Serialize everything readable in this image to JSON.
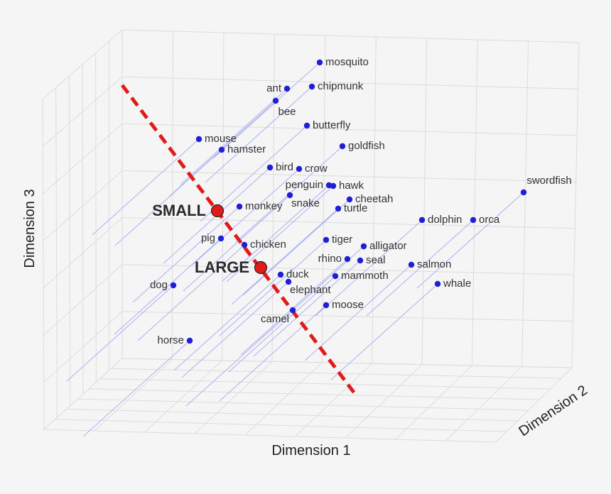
{
  "chart_data": {
    "type": "scatter",
    "projection": "3d",
    "xlabel": "Dimension 1",
    "ylabel": "Dimension 2",
    "zlabel": "Dimension 3",
    "grid": true,
    "colors": {
      "points": "#1f1fd6",
      "projection_lines": "#aab0f0",
      "axis_line": "#e11b1b",
      "anchor_fill": "#e11b1b",
      "grid": "#dcdcdc"
    },
    "anchors": [
      {
        "label": "SMALL",
        "screen": [
          306,
          297
        ]
      },
      {
        "label": "LARGE",
        "screen": [
          367,
          377
        ]
      }
    ],
    "points": [
      {
        "label": "mosquito",
        "screen": [
          450,
          88
        ],
        "label_side": "right"
      },
      {
        "label": "ant",
        "screen": [
          404,
          125
        ],
        "label_side": "left"
      },
      {
        "label": "chipmunk",
        "screen": [
          439,
          122
        ],
        "label_side": "right"
      },
      {
        "label": "bee",
        "screen": [
          388,
          142
        ],
        "label_side": "below"
      },
      {
        "label": "butterfly",
        "screen": [
          432,
          177
        ],
        "label_side": "right"
      },
      {
        "label": "mouse",
        "screen": [
          280,
          196
        ],
        "label_side": "right"
      },
      {
        "label": "hamster",
        "screen": [
          312,
          211
        ],
        "label_side": "right"
      },
      {
        "label": "goldfish",
        "screen": [
          482,
          206
        ],
        "label_side": "right"
      },
      {
        "label": "bird",
        "screen": [
          380,
          236
        ],
        "label_side": "right"
      },
      {
        "label": "crow",
        "screen": [
          421,
          238
        ],
        "label_side": "right"
      },
      {
        "label": "penguin",
        "screen": [
          463,
          261
        ],
        "label_side": "left"
      },
      {
        "label": "hawk",
        "screen": [
          469,
          262
        ],
        "label_side": "right"
      },
      {
        "label": "monkey",
        "screen": [
          337,
          291
        ],
        "label_side": "right"
      },
      {
        "label": "snake",
        "screen": [
          408,
          275
        ],
        "label_side": "below-right"
      },
      {
        "label": "cheetah",
        "screen": [
          492,
          281
        ],
        "label_side": "right"
      },
      {
        "label": "turtle",
        "screen": [
          476,
          294
        ],
        "label_side": "right"
      },
      {
        "label": "swordfish",
        "screen": [
          737,
          271
        ],
        "label_side": "above"
      },
      {
        "label": "dolphin",
        "screen": [
          594,
          310
        ],
        "label_side": "right"
      },
      {
        "label": "orca",
        "screen": [
          666,
          310
        ],
        "label_side": "right"
      },
      {
        "label": "pig",
        "screen": [
          311,
          336
        ],
        "label_side": "left"
      },
      {
        "label": "chicken",
        "screen": [
          344,
          345
        ],
        "label_side": "right"
      },
      {
        "label": "tiger",
        "screen": [
          459,
          338
        ],
        "label_side": "right"
      },
      {
        "label": "alligator",
        "screen": [
          512,
          347
        ],
        "label_side": "right"
      },
      {
        "label": "rhino",
        "screen": [
          489,
          365
        ],
        "label_side": "left"
      },
      {
        "label": "seal",
        "screen": [
          507,
          367
        ],
        "label_side": "right"
      },
      {
        "label": "salmon",
        "screen": [
          579,
          373
        ],
        "label_side": "right"
      },
      {
        "label": "duck",
        "screen": [
          395,
          387
        ],
        "label_side": "right"
      },
      {
        "label": "mammoth",
        "screen": [
          472,
          389
        ],
        "label_side": "right"
      },
      {
        "label": "dog",
        "screen": [
          244,
          402
        ],
        "label_side": "left"
      },
      {
        "label": "elephant",
        "screen": [
          406,
          397
        ],
        "label_side": "below-right"
      },
      {
        "label": "whale",
        "screen": [
          616,
          400
        ],
        "label_side": "right"
      },
      {
        "label": "moose",
        "screen": [
          459,
          430
        ],
        "label_side": "right"
      },
      {
        "label": "camel",
        "screen": [
          412,
          437
        ],
        "label_side": "below-left"
      },
      {
        "label": "horse",
        "screen": [
          267,
          480
        ],
        "label_side": "left"
      }
    ]
  }
}
